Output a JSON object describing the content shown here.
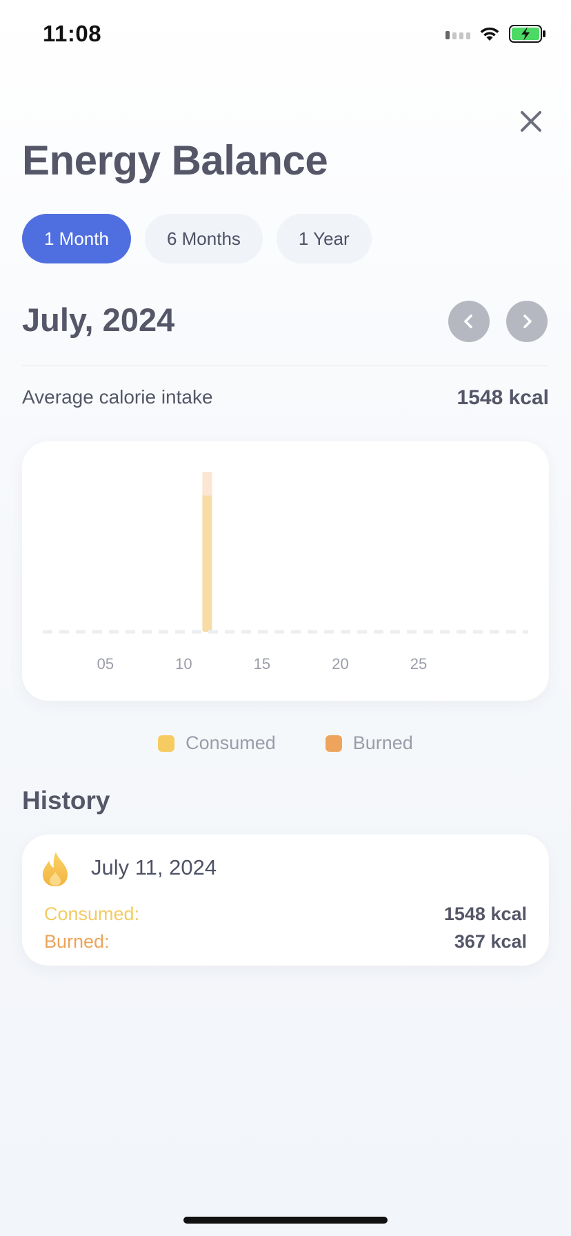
{
  "status_bar": {
    "time": "11:08",
    "icons": [
      "cellular-signal-icon",
      "wifi-icon",
      "battery-charging-icon"
    ]
  },
  "header": {
    "title": "Energy Balance",
    "close_icon": "close-icon"
  },
  "tabs": [
    {
      "label": "1 Month",
      "active": true
    },
    {
      "label": "6 Months",
      "active": false
    },
    {
      "label": "1 Year",
      "active": false
    }
  ],
  "period": {
    "label": "July, 2024",
    "prev_icon": "chevron-left-icon",
    "next_icon": "chevron-right-icon"
  },
  "summary": {
    "average_label": "Average calorie intake",
    "average_value": "1548 kcal"
  },
  "chart_data": {
    "type": "bar",
    "x_range": [
      1,
      31
    ],
    "x_ticks": [
      "05",
      "10",
      "15",
      "20",
      "25"
    ],
    "series": [
      {
        "name": "Consumed",
        "color": "#f7dca6",
        "points": [
          {
            "day": 11,
            "value": 1548
          }
        ]
      },
      {
        "name": "Burned",
        "color": "#fbe6d3",
        "points": [
          {
            "day": 11,
            "value": 367
          }
        ]
      }
    ],
    "grid": "dashed-baseline",
    "legend": "bottom-center"
  },
  "legend": [
    {
      "label": "Consumed",
      "color": "#f6cb62"
    },
    {
      "label": "Burned",
      "color": "#efa45d"
    }
  ],
  "history": {
    "title": "History",
    "entries": [
      {
        "date": "July 11, 2024",
        "icon": "flame-icon",
        "consumed_label": "Consumed:",
        "consumed_value": "1548 kcal",
        "burned_label": "Burned:",
        "burned_value": "367 kcal"
      }
    ]
  }
}
